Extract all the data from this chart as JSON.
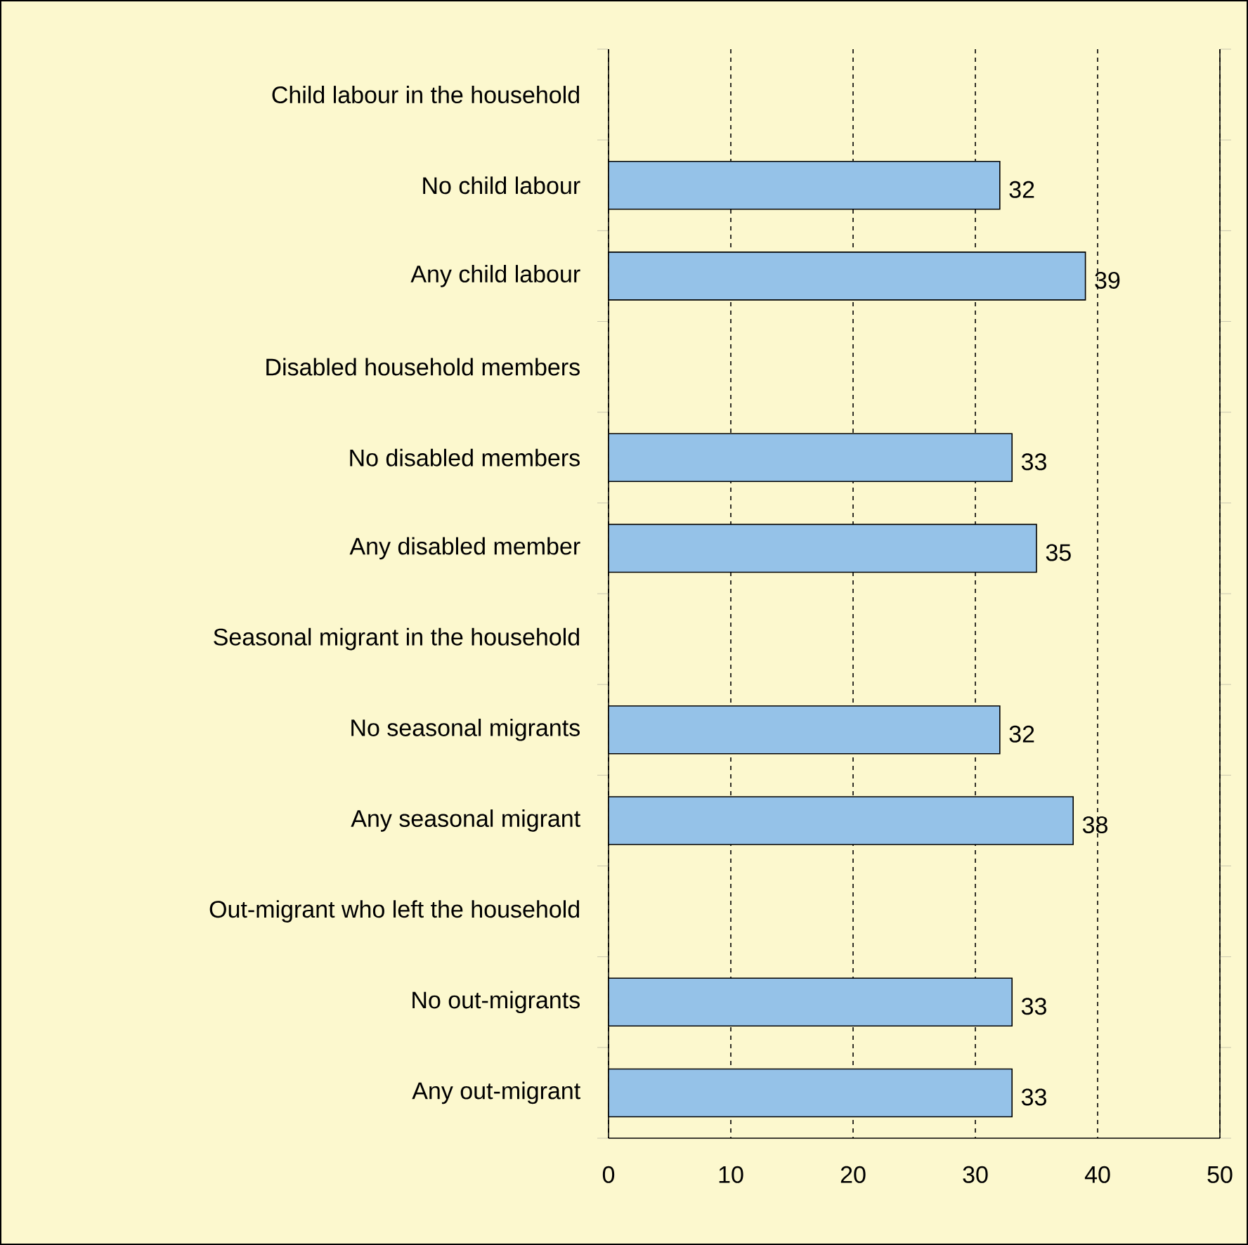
{
  "chart_data": {
    "type": "bar",
    "orientation": "horizontal",
    "categories": [
      "Child labour in the household",
      "No child labour",
      "Any child labour",
      "Disabled household members",
      "No disabled members",
      "Any disabled member",
      "Seasonal migrant in the household",
      "No seasonal migrants",
      "Any seasonal migrant",
      "Out-migrant who left the household",
      "No out-migrants",
      "Any out-migrant"
    ],
    "values": [
      null,
      32,
      39,
      null,
      33,
      35,
      null,
      32,
      38,
      null,
      33,
      33
    ],
    "color": "#95c2e8",
    "xlim": [
      0,
      50
    ],
    "xticks": [
      0,
      10,
      20,
      30,
      40,
      50
    ],
    "grid": "x",
    "data_labels": true
  }
}
